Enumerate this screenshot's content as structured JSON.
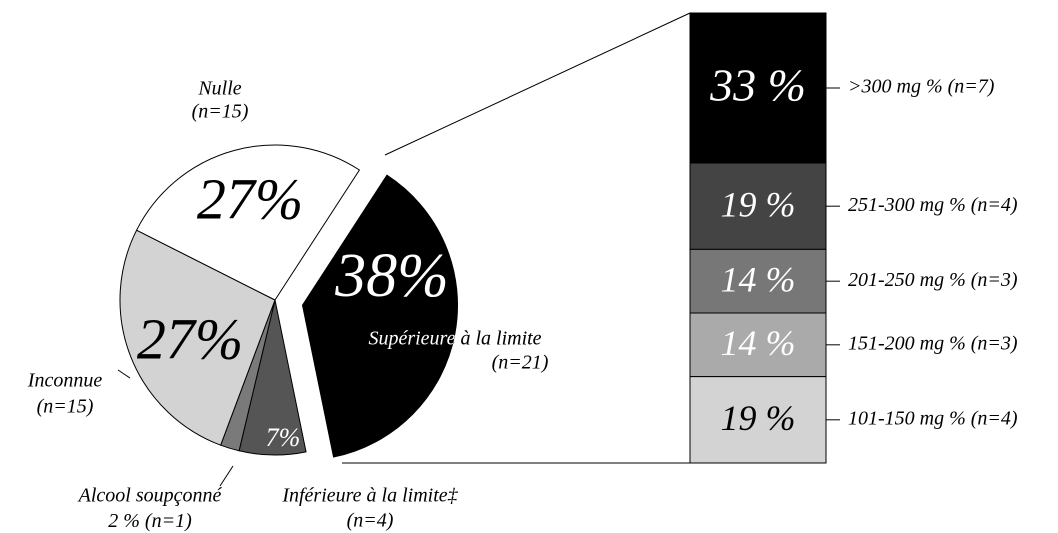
{
  "chart_data": [
    {
      "type": "pie",
      "categories": [
        "Supérieure à la limite",
        "Inférieure à la limite‡",
        "Alcool soupçonné",
        "Inconnue",
        "Nulle"
      ],
      "values": [
        38,
        7,
        2,
        27,
        27
      ],
      "value_labels": [
        "38%",
        "7%",
        "2 %",
        "27%",
        "27%"
      ],
      "count_labels": [
        "(n=21)",
        "(n=4)",
        "(n=1)",
        "(n=15)",
        "(n=15)"
      ],
      "colors": [
        "#000000",
        "#555555",
        "#7a7a7a",
        "#d3d3d3",
        "#ffffff"
      ]
    },
    {
      "type": "stacked-bar",
      "categories": [
        ">300 mg % (n=7)",
        "251-300 mg % (n=4)",
        "201-250 mg % (n=3)",
        "151-200 mg % (n=3)",
        "101-150 mg % (n=4)"
      ],
      "values": [
        33,
        19,
        14,
        14,
        19
      ],
      "value_labels": [
        "33 %",
        "19 %",
        "14 %",
        "14 %",
        "19 %"
      ],
      "colors": [
        "#000000",
        "#444444",
        "#777777",
        "#aaaaaa",
        "#d3d3d3"
      ]
    }
  ]
}
